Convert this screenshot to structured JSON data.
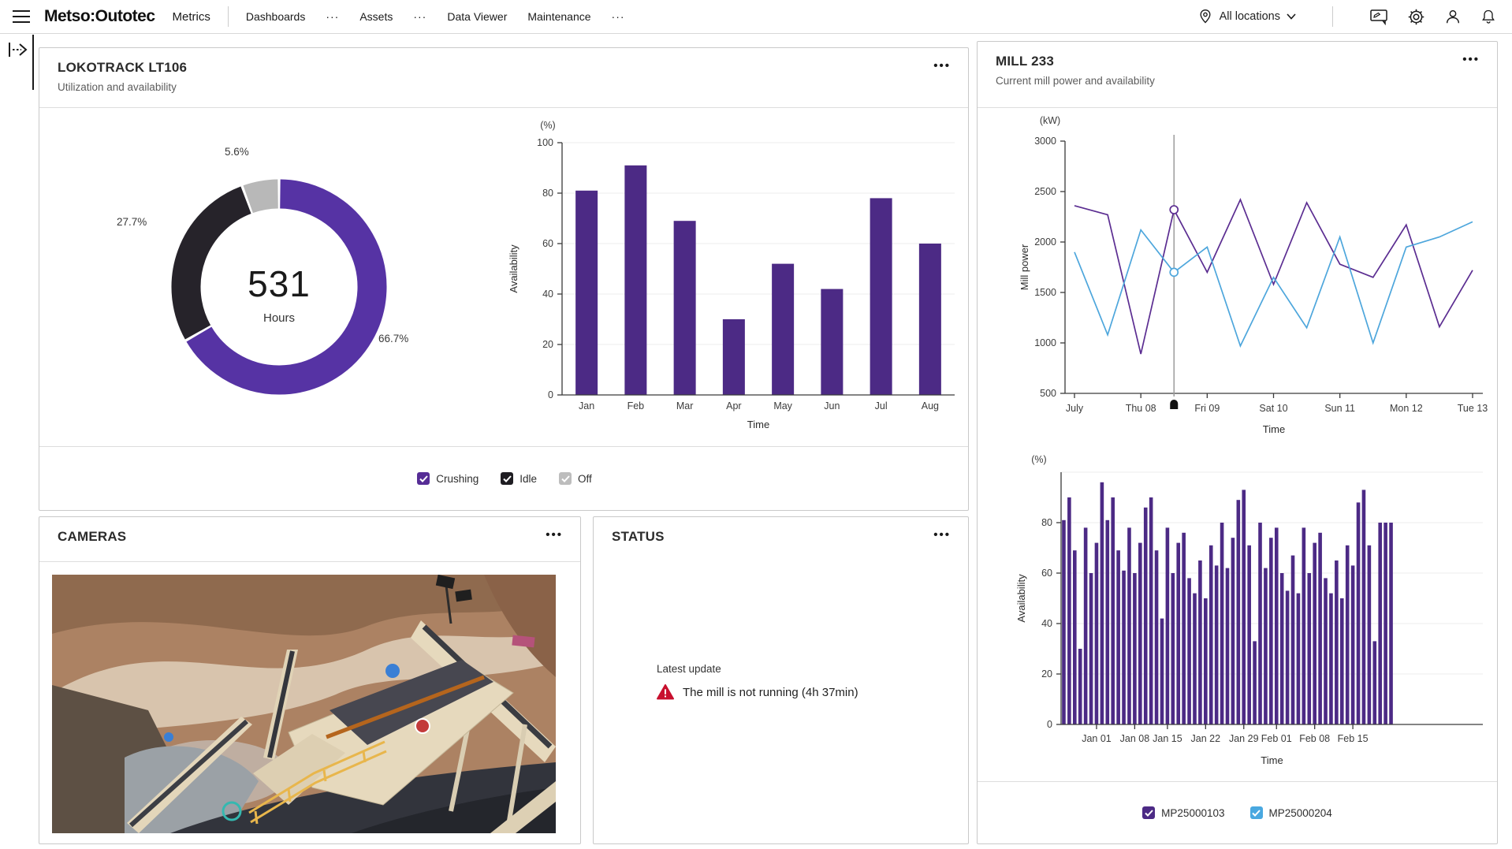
{
  "nav": {
    "logo": "Metso:Outotec",
    "app_label": "Metrics",
    "items": [
      "Dashboards",
      "···",
      "Assets",
      "···",
      "Data Viewer",
      "Maintenance",
      "···"
    ],
    "location_label": "All locations"
  },
  "ui": {
    "overflow_dots": "•••"
  },
  "panels": {
    "lokotrack": {
      "title": "LOKOTRACK LT106",
      "subtitle": "Utilization and availability",
      "checkboxes": [
        {
          "label": "Crushing",
          "color": "#562d96"
        },
        {
          "label": "Idle",
          "color": "#1f1d22"
        },
        {
          "label": "Off",
          "color": "#bdbdbd"
        }
      ]
    },
    "cameras": {
      "title": "CAMERAS"
    },
    "status": {
      "title": "STATUS",
      "latest_update_label": "Latest update",
      "message": "The mill is not running (4h 37min)",
      "alert_color": "#c8102e"
    },
    "mill": {
      "title": "MILL 233",
      "subtitle": "Current mill power and availability",
      "legend": [
        {
          "label": "MP25000103",
          "color": "#4c2a85"
        },
        {
          "label": "MP25000204",
          "color": "#49a8e0"
        }
      ]
    }
  },
  "chart_data": [
    {
      "type": "pie",
      "panel": "lokotrack",
      "title": "Utilization donut",
      "center_value": "531",
      "center_label": "Hours",
      "slices": [
        {
          "name": "Crushing",
          "label": "66.7%",
          "value": 66.7,
          "color": "#5633a4"
        },
        {
          "name": "Idle",
          "label": "27.7%",
          "value": 27.7,
          "color": "#26232a"
        },
        {
          "name": "Off",
          "label": "5.6%",
          "value": 5.6,
          "color": "#b8b8b8"
        }
      ]
    },
    {
      "type": "bar",
      "panel": "lokotrack",
      "title": "Availability by month",
      "categories": [
        "Jan",
        "Feb",
        "Mar",
        "Apr",
        "May",
        "Jun",
        "Jul",
        "Aug"
      ],
      "values": [
        81,
        91,
        69,
        30,
        52,
        42,
        78,
        60
      ],
      "unit": "(%)",
      "ylabel": "Availability",
      "xlabel": "Time",
      "ylim": [
        0,
        100
      ],
      "yticks": [
        0,
        20,
        40,
        60,
        80,
        100
      ],
      "color": "#4c2a85"
    },
    {
      "type": "line",
      "panel": "mill",
      "title": "Current mill power",
      "unit": "(kW)",
      "ylabel": "Mill power",
      "xlabel": "Time",
      "ylim": [
        500,
        3000
      ],
      "yticks": [
        500,
        1000,
        1500,
        2000,
        2500,
        3000
      ],
      "x_labels": [
        "July",
        "Thu 08",
        "Fri 09",
        "Sat 10",
        "Sun 11",
        "Mon 12",
        "Tue 13"
      ],
      "cursor_index": 3,
      "series": [
        {
          "name": "MP25000103",
          "color": "#5b2d91",
          "values": [
            2360,
            2270,
            890,
            2320,
            1700,
            2420,
            1580,
            2390,
            1780,
            1650,
            2170,
            1160,
            1720
          ]
        },
        {
          "name": "MP25000204",
          "color": "#4da6dc",
          "values": [
            1900,
            1080,
            2120,
            1700,
            1950,
            970,
            1650,
            1150,
            2050,
            1000,
            1950,
            2050,
            2200
          ]
        }
      ]
    },
    {
      "type": "bar",
      "panel": "mill",
      "title": "Availability daily",
      "values": [
        81,
        90,
        69,
        30,
        78,
        60,
        72,
        96,
        81,
        90,
        69,
        61,
        78,
        60,
        72,
        86,
        90,
        69,
        42,
        78,
        60,
        72,
        76,
        58,
        52,
        65,
        50,
        71,
        63,
        80,
        62,
        74,
        89,
        93,
        71,
        33,
        80,
        62,
        74,
        78,
        60,
        53,
        67,
        52,
        78,
        60,
        72,
        76,
        58,
        52,
        65,
        50,
        71,
        63,
        88,
        93,
        71,
        33,
        80,
        80,
        80
      ],
      "tick_labels": [
        "Jan 01",
        "Jan 08",
        "Jan 15",
        "Jan 22",
        "Jan 29",
        "Feb 01",
        "Feb 08",
        "Feb 15"
      ],
      "tick_indices": [
        6,
        13,
        19,
        26,
        33,
        39,
        46,
        53
      ],
      "unit": "(%)",
      "ylabel": "Availability",
      "xlabel": "Time",
      "ylim": [
        0,
        100
      ],
      "yticks": [
        0,
        20,
        40,
        60,
        80
      ],
      "color": "#4c2a85"
    }
  ]
}
